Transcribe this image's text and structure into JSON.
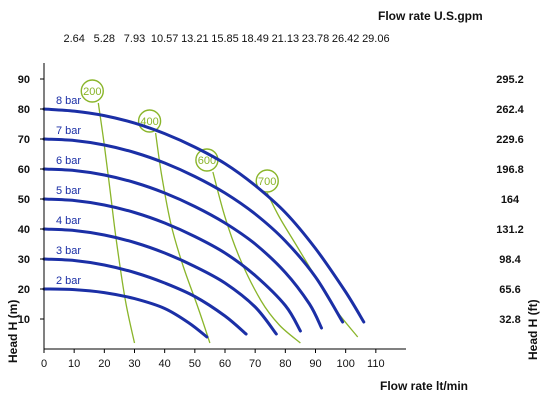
{
  "chart_data": {
    "type": "line",
    "xlabel": "Flow rate  lt/min",
    "ylabel": "Head H (m)",
    "top_xlabel": "Flow rate U.S.gpm",
    "right_ylabel": "Head H (ft)",
    "xlim": [
      0,
      120
    ],
    "ylim": [
      0,
      95
    ],
    "x_ticks": [
      0,
      10,
      20,
      30,
      40,
      50,
      60,
      70,
      80,
      90,
      100,
      110
    ],
    "y_ticks": [
      10,
      20,
      30,
      40,
      50,
      60,
      70,
      80,
      90
    ],
    "top_ticks": [
      {
        "label": "2.64",
        "x": 10
      },
      {
        "label": "5.28",
        "x": 20
      },
      {
        "label": "7.93",
        "x": 30
      },
      {
        "label": "10.57",
        "x": 40
      },
      {
        "label": "13.21",
        "x": 50
      },
      {
        "label": "15.85",
        "x": 60
      },
      {
        "label": "18.49",
        "x": 70
      },
      {
        "label": "21.13",
        "x": 80
      },
      {
        "label": "23.78",
        "x": 90
      },
      {
        "label": "26.42",
        "x": 100
      },
      {
        "label": "29.06",
        "x": 110
      }
    ],
    "right_ticks": [
      {
        "label": "32.8",
        "y": 10
      },
      {
        "label": "65.6",
        "y": 20
      },
      {
        "label": "98.4",
        "y": 30
      },
      {
        "label": "131.2",
        "y": 40
      },
      {
        "label": "164",
        "y": 50
      },
      {
        "label": "196.8",
        "y": 60
      },
      {
        "label": "229.6",
        "y": 70
      },
      {
        "label": "262.4",
        "y": 80
      },
      {
        "label": "295.2",
        "y": 90
      }
    ],
    "pressure_curves": [
      {
        "name": "2 bar",
        "points": [
          [
            0,
            20
          ],
          [
            10,
            19.8
          ],
          [
            20,
            18.8
          ],
          [
            30,
            16.8
          ],
          [
            40,
            13.5
          ],
          [
            48,
            8.7
          ],
          [
            54,
            4
          ]
        ]
      },
      {
        "name": "3 bar",
        "points": [
          [
            0,
            30
          ],
          [
            10,
            29.5
          ],
          [
            20,
            28
          ],
          [
            30,
            25.5
          ],
          [
            40,
            22
          ],
          [
            50,
            17.5
          ],
          [
            60,
            11
          ],
          [
            67,
            5
          ]
        ]
      },
      {
        "name": "4 bar",
        "points": [
          [
            0,
            40
          ],
          [
            10,
            39.5
          ],
          [
            20,
            38
          ],
          [
            30,
            35.5
          ],
          [
            40,
            32
          ],
          [
            50,
            27.5
          ],
          [
            60,
            22
          ],
          [
            70,
            14
          ],
          [
            77,
            5
          ]
        ]
      },
      {
        "name": "5 bar",
        "points": [
          [
            0,
            50
          ],
          [
            10,
            49.5
          ],
          [
            20,
            48
          ],
          [
            30,
            45.5
          ],
          [
            40,
            42
          ],
          [
            50,
            37.5
          ],
          [
            60,
            32
          ],
          [
            70,
            24.5
          ],
          [
            80,
            14.5
          ],
          [
            85,
            6
          ]
        ]
      },
      {
        "name": "6 bar",
        "points": [
          [
            0,
            60
          ],
          [
            10,
            59.5
          ],
          [
            20,
            58
          ],
          [
            30,
            55.5
          ],
          [
            40,
            52
          ],
          [
            50,
            47.5
          ],
          [
            60,
            42
          ],
          [
            70,
            35
          ],
          [
            80,
            25.5
          ],
          [
            88,
            15
          ],
          [
            92,
            7
          ]
        ]
      },
      {
        "name": "7 bar",
        "points": [
          [
            0,
            70
          ],
          [
            10,
            69.5
          ],
          [
            20,
            68
          ],
          [
            30,
            65.5
          ],
          [
            40,
            62
          ],
          [
            50,
            57.5
          ],
          [
            60,
            52
          ],
          [
            70,
            45
          ],
          [
            80,
            36
          ],
          [
            90,
            24
          ],
          [
            99,
            9
          ]
        ]
      },
      {
        "name": "8 bar",
        "points": [
          [
            0,
            80
          ],
          [
            10,
            79.3
          ],
          [
            20,
            77.8
          ],
          [
            30,
            75.3
          ],
          [
            40,
            71.8
          ],
          [
            50,
            67.3
          ],
          [
            60,
            61.8
          ],
          [
            70,
            54.5
          ],
          [
            80,
            45.5
          ],
          [
            90,
            33.5
          ],
          [
            100,
            19
          ],
          [
            106,
            9
          ]
        ]
      }
    ],
    "flow_curves": [
      {
        "label": "200",
        "points": [
          [
            18,
            82
          ],
          [
            20,
            68
          ],
          [
            22,
            52
          ],
          [
            24,
            36
          ],
          [
            27,
            16
          ],
          [
            30,
            2
          ]
        ],
        "label_at": [
          16,
          86
        ]
      },
      {
        "label": "400",
        "points": [
          [
            37,
            72
          ],
          [
            39,
            58
          ],
          [
            42,
            42
          ],
          [
            46,
            28
          ],
          [
            51,
            14
          ],
          [
            55,
            2
          ]
        ],
        "label_at": [
          35,
          76
        ]
      },
      {
        "label": "600",
        "points": [
          [
            56,
            59
          ],
          [
            60,
            44
          ],
          [
            65,
            30
          ],
          [
            72,
            16
          ],
          [
            78,
            8
          ],
          [
            85,
            2
          ]
        ],
        "label_at": [
          54,
          63
        ]
      },
      {
        "label": "700",
        "points": [
          [
            74,
            52
          ],
          [
            78,
            44
          ],
          [
            84,
            34
          ],
          [
            90,
            24
          ],
          [
            96,
            14
          ],
          [
            104,
            4
          ]
        ],
        "label_at": [
          74,
          56
        ]
      }
    ],
    "colors": {
      "pressure": "#1b2fa6",
      "flow": "#8ab52a",
      "axis": "#000000"
    },
    "grid": false
  }
}
